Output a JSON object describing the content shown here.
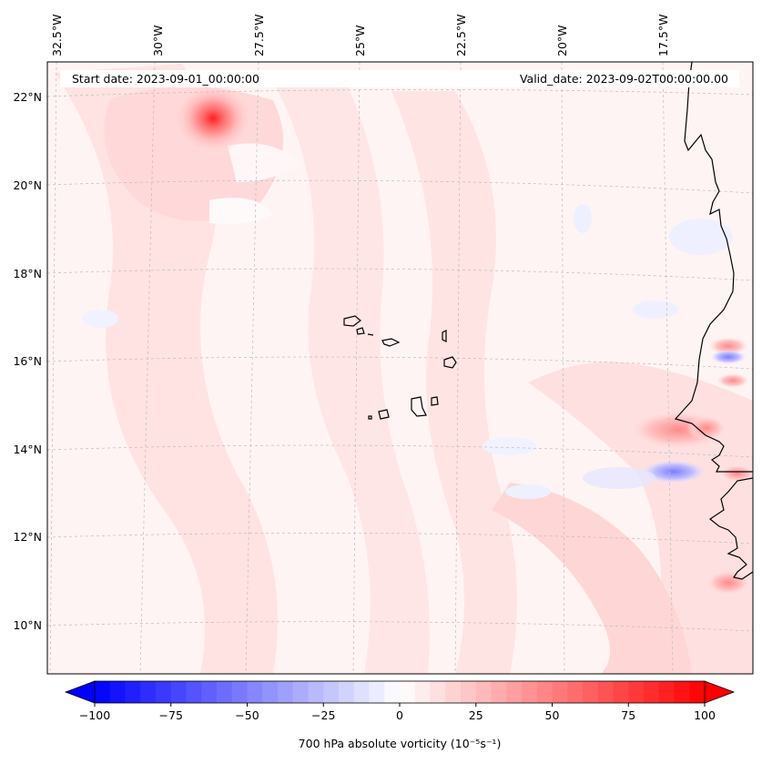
{
  "header": {
    "start_date": "Start date: 2023-09-01_00:00:00",
    "valid_date": "Valid_date: 2023-09-02T00:00:00.00"
  },
  "axes": {
    "lon_labels": [
      "32.5°W",
      "30°W",
      "27.5°W",
      "25°W",
      "22.5°W",
      "20°W",
      "17.5°W"
    ],
    "lat_labels": [
      "22°N",
      "20°N",
      "18°N",
      "16°N",
      "14°N",
      "12°N",
      "10°N"
    ]
  },
  "colorbar": {
    "ticks": [
      "−100",
      "−75",
      "−50",
      "−25",
      "0",
      "25",
      "50",
      "75",
      "100"
    ],
    "label": "700 hPa absolute vorticity (10⁻⁵s⁻¹)",
    "min": -100,
    "max": 100,
    "negative_color": "#0000ff",
    "positive_color": "#ff0000",
    "mid_color": "#ffffff"
  },
  "colors": {
    "gridline": "#bbbbbb",
    "coastline": "#000000"
  }
}
